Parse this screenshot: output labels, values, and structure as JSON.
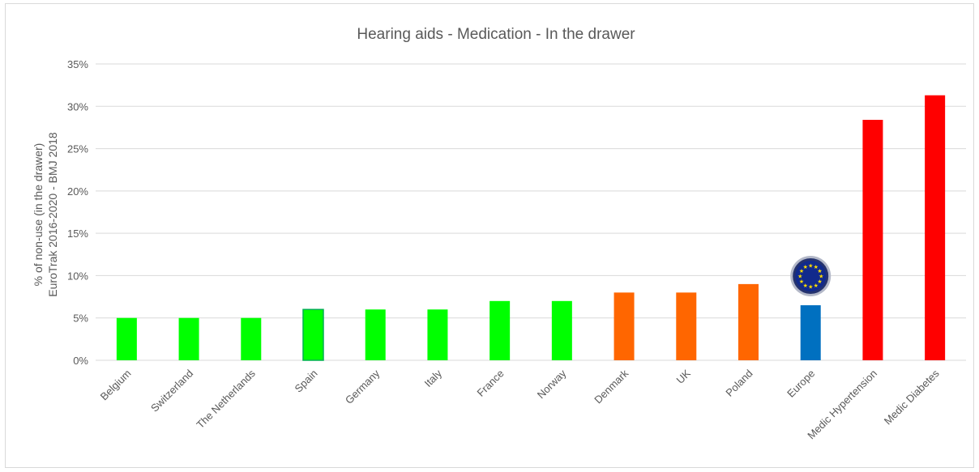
{
  "chart_data": {
    "type": "bar",
    "title": "Hearing aids - Medication - In the drawer",
    "ylabel": [
      "% of non-use (in the drawer)",
      "EuroTrak 2016-2020 - BMJ 2018"
    ],
    "xlabel": "",
    "ylim": [
      0,
      0.35
    ],
    "yticks": [
      0,
      0.05,
      0.1,
      0.15,
      0.2,
      0.25,
      0.3,
      0.35
    ],
    "ytick_labels": [
      "0%",
      "5%",
      "10%",
      "15%",
      "20%",
      "25%",
      "30%",
      "35%"
    ],
    "grid": true,
    "categories": [
      "Belgium",
      "Switzerland",
      "The Netherlands",
      "Spain",
      "Germany",
      "Italy",
      "France",
      "Norway",
      "Denmark",
      "UK",
      "Poland",
      "Europe",
      "Medic Hypertension",
      "Medic Diabetes"
    ],
    "values": [
      0.05,
      0.05,
      0.05,
      0.06,
      0.06,
      0.06,
      0.07,
      0.07,
      0.08,
      0.08,
      0.09,
      0.065,
      0.284,
      0.313
    ],
    "colors": [
      "#00ff00",
      "#00ff00",
      "#00ff00",
      "#00ff00",
      "#00ff00",
      "#00ff00",
      "#00ff00",
      "#00ff00",
      "#ff6600",
      "#ff6600",
      "#ff6600",
      "#0070c0",
      "#ff0000",
      "#ff0000"
    ],
    "bar_borders": [
      "",
      "",
      "",
      "#00b050",
      "",
      "",
      "",
      "",
      "",
      "",
      "",
      "",
      "",
      ""
    ],
    "annotations": [
      {
        "type": "eu-flag-badge",
        "category": "Europe"
      }
    ]
  }
}
